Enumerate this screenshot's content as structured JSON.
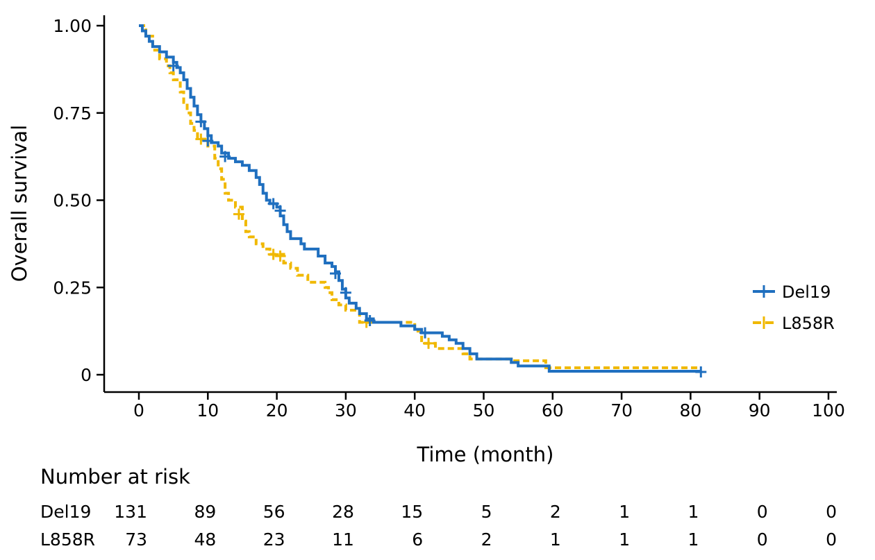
{
  "chart_data": {
    "type": "line",
    "title": "",
    "xlabel": "Time (month)",
    "ylabel": "Overall survival",
    "xlim": [
      0,
      100
    ],
    "ylim": [
      0,
      1
    ],
    "x_ticks": [
      0,
      10,
      20,
      30,
      40,
      50,
      60,
      70,
      80,
      90,
      100
    ],
    "x_tick_labels": [
      "0",
      "10",
      "20",
      "30",
      "40",
      "50",
      "60",
      "70",
      "80",
      "90",
      "100"
    ],
    "y_ticks": [
      0,
      0.25,
      0.5,
      0.75,
      1.0
    ],
    "y_tick_labels": [
      "0",
      "0.25",
      "0.50",
      "0.75",
      "1.00"
    ],
    "grid": false,
    "legend_position": "right",
    "series": [
      {
        "name": "Del19",
        "color": "#1f6fbf",
        "line_style": "solid",
        "step": true,
        "points": [
          [
            0,
            1.0
          ],
          [
            0.5,
            0.985
          ],
          [
            1,
            0.97
          ],
          [
            1.5,
            0.955
          ],
          [
            2,
            0.94
          ],
          [
            3,
            0.925
          ],
          [
            4,
            0.91
          ],
          [
            5,
            0.895
          ],
          [
            5.5,
            0.88
          ],
          [
            6,
            0.865
          ],
          [
            6.5,
            0.845
          ],
          [
            7,
            0.82
          ],
          [
            7.5,
            0.795
          ],
          [
            8,
            0.77
          ],
          [
            8.5,
            0.745
          ],
          [
            9,
            0.725
          ],
          [
            9.5,
            0.705
          ],
          [
            10,
            0.685
          ],
          [
            10.5,
            0.665
          ],
          [
            11.5,
            0.655
          ],
          [
            12,
            0.635
          ],
          [
            13,
            0.62
          ],
          [
            14,
            0.61
          ],
          [
            15,
            0.6
          ],
          [
            16,
            0.585
          ],
          [
            17,
            0.565
          ],
          [
            17.5,
            0.545
          ],
          [
            18,
            0.52
          ],
          [
            18.5,
            0.5
          ],
          [
            19,
            0.49
          ],
          [
            20,
            0.48
          ],
          [
            20.5,
            0.455
          ],
          [
            21,
            0.43
          ],
          [
            21.5,
            0.41
          ],
          [
            22,
            0.39
          ],
          [
            23.5,
            0.375
          ],
          [
            24,
            0.36
          ],
          [
            26,
            0.34
          ],
          [
            27,
            0.32
          ],
          [
            28,
            0.31
          ],
          [
            28.5,
            0.295
          ],
          [
            29,
            0.27
          ],
          [
            29.5,
            0.245
          ],
          [
            30,
            0.22
          ],
          [
            30.5,
            0.205
          ],
          [
            31.5,
            0.19
          ],
          [
            32,
            0.175
          ],
          [
            33,
            0.16
          ],
          [
            34,
            0.15
          ],
          [
            36,
            0.15
          ],
          [
            38,
            0.14
          ],
          [
            40,
            0.13
          ],
          [
            41,
            0.12
          ],
          [
            44,
            0.11
          ],
          [
            45,
            0.1
          ],
          [
            46,
            0.09
          ],
          [
            47,
            0.075
          ],
          [
            48,
            0.06
          ],
          [
            49,
            0.045
          ],
          [
            54,
            0.035
          ],
          [
            55,
            0.025
          ],
          [
            59.5,
            0.01
          ],
          [
            81.5,
            0.01
          ]
        ],
        "censors": [
          [
            5,
            0.885
          ],
          [
            9,
            0.725
          ],
          [
            10,
            0.67
          ],
          [
            12.5,
            0.625
          ],
          [
            19.5,
            0.49
          ],
          [
            20.5,
            0.47
          ],
          [
            28.5,
            0.29
          ],
          [
            30,
            0.235
          ],
          [
            33.5,
            0.155
          ],
          [
            41.5,
            0.12
          ],
          [
            81.5,
            0.008
          ]
        ]
      },
      {
        "name": "L858R",
        "color": "#f0b800",
        "line_style": "dashed",
        "step": true,
        "points": [
          [
            0,
            1.0
          ],
          [
            1,
            0.97
          ],
          [
            2,
            0.93
          ],
          [
            3,
            0.905
          ],
          [
            4,
            0.885
          ],
          [
            4.5,
            0.865
          ],
          [
            5,
            0.845
          ],
          [
            6,
            0.81
          ],
          [
            6.5,
            0.78
          ],
          [
            7,
            0.75
          ],
          [
            7.5,
            0.72
          ],
          [
            8,
            0.7
          ],
          [
            8.5,
            0.675
          ],
          [
            10,
            0.655
          ],
          [
            11,
            0.62
          ],
          [
            11.5,
            0.59
          ],
          [
            12,
            0.56
          ],
          [
            12.5,
            0.52
          ],
          [
            13,
            0.5
          ],
          [
            14,
            0.48
          ],
          [
            15,
            0.44
          ],
          [
            15.5,
            0.41
          ],
          [
            16,
            0.395
          ],
          [
            17,
            0.375
          ],
          [
            18,
            0.36
          ],
          [
            19,
            0.345
          ],
          [
            21,
            0.32
          ],
          [
            22,
            0.305
          ],
          [
            23,
            0.285
          ],
          [
            24.5,
            0.265
          ],
          [
            27,
            0.25
          ],
          [
            27.5,
            0.235
          ],
          [
            28,
            0.215
          ],
          [
            29,
            0.2
          ],
          [
            30,
            0.185
          ],
          [
            32,
            0.15
          ],
          [
            40,
            0.125
          ],
          [
            41,
            0.09
          ],
          [
            43,
            0.075
          ],
          [
            47,
            0.06
          ],
          [
            48,
            0.045
          ],
          [
            54,
            0.04
          ],
          [
            59,
            0.02
          ],
          [
            81,
            0.02
          ]
        ],
        "censors": [
          [
            9,
            0.675
          ],
          [
            14.5,
            0.46
          ],
          [
            19.5,
            0.345
          ],
          [
            20.5,
            0.34
          ],
          [
            33,
            0.15
          ],
          [
            42,
            0.09
          ]
        ]
      }
    ]
  },
  "risk_table": {
    "title": "Number at risk",
    "times": [
      0,
      10,
      20,
      30,
      40,
      50,
      60,
      70,
      80,
      90,
      100
    ],
    "rows": [
      {
        "label": "Del19",
        "values": [
          "131",
          "89",
          "56",
          "28",
          "15",
          "5",
          "2",
          "1",
          "1",
          "0",
          "0"
        ]
      },
      {
        "label": "L858R",
        "values": [
          "73",
          "48",
          "23",
          "11",
          "6",
          "2",
          "1",
          "1",
          "1",
          "0",
          "0"
        ]
      }
    ]
  }
}
